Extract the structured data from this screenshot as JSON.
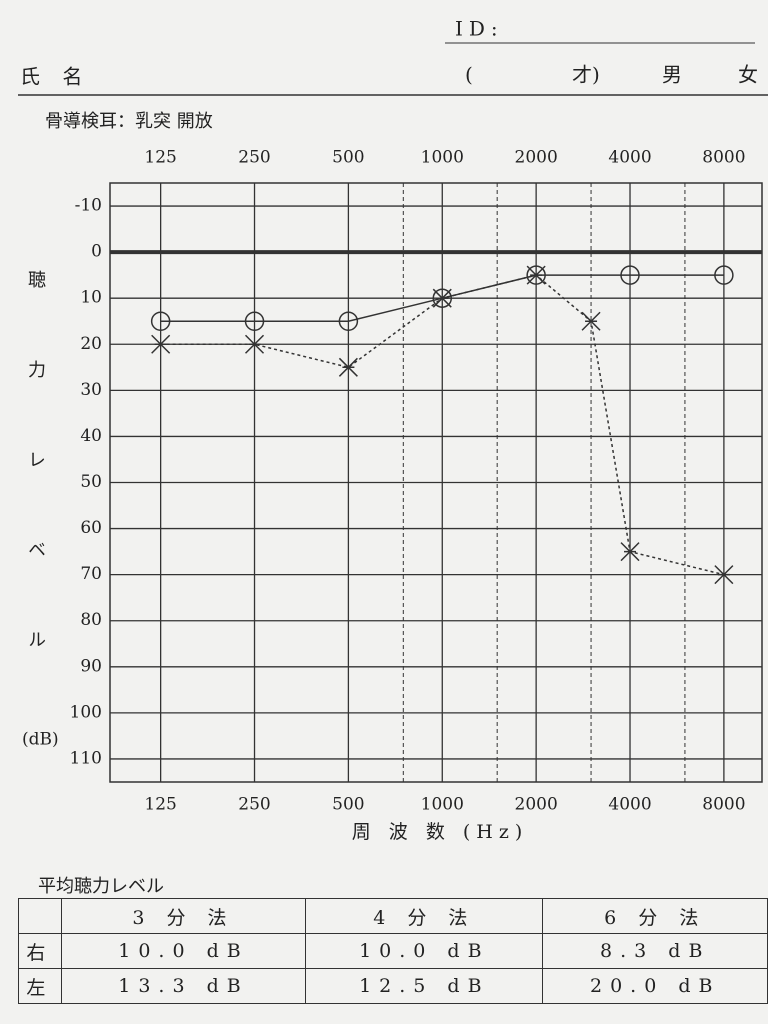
{
  "header": {
    "id_label": "ID:",
    "name_label": "氏 名",
    "age_open": "(",
    "age_close": "才)",
    "male": "男",
    "female": "女"
  },
  "chart_data": {
    "type": "line",
    "subtitle": "骨導検耳：乳突 開放",
    "ylabel": "聴力レベル",
    "ylabel_unit": "(dB)",
    "xlabel": "周 波 数 (Hz)",
    "xscale": "log",
    "xlim": [
      86,
      10600
    ],
    "xticks": [
      125,
      250,
      500,
      1000,
      2000,
      4000,
      8000
    ],
    "xminor": [
      750,
      1500,
      3000,
      6000
    ],
    "ylim": [
      -15,
      115
    ],
    "y_inverted": true,
    "yticks": [
      -10,
      0,
      10,
      20,
      30,
      40,
      50,
      60,
      70,
      80,
      90,
      100,
      110
    ],
    "grid": true,
    "color": "#333333",
    "series": [
      {
        "marker": "o",
        "linestyle": "solid",
        "x": [
          125,
          250,
          500,
          1000,
          2000,
          4000,
          8000
        ],
        "values": [
          15,
          15,
          15,
          10,
          5,
          5,
          5
        ]
      },
      {
        "marker": "x",
        "linestyle": "dashed",
        "x": [
          125,
          250,
          500,
          1000,
          2000,
          3000,
          4000,
          8000
        ],
        "values": [
          20,
          20,
          25,
          10,
          5,
          15,
          65,
          70
        ]
      }
    ]
  },
  "table": {
    "title": "平均聴力レベル",
    "columns": [
      "3 分 法",
      "4 分 法",
      "6 分 法"
    ],
    "rows": [
      [
        "右",
        "10.0 dB",
        "10.0 dB",
        "8.3 dB"
      ],
      [
        "左",
        "13.3 dB",
        "12.5 dB",
        "20.0 dB"
      ]
    ]
  }
}
